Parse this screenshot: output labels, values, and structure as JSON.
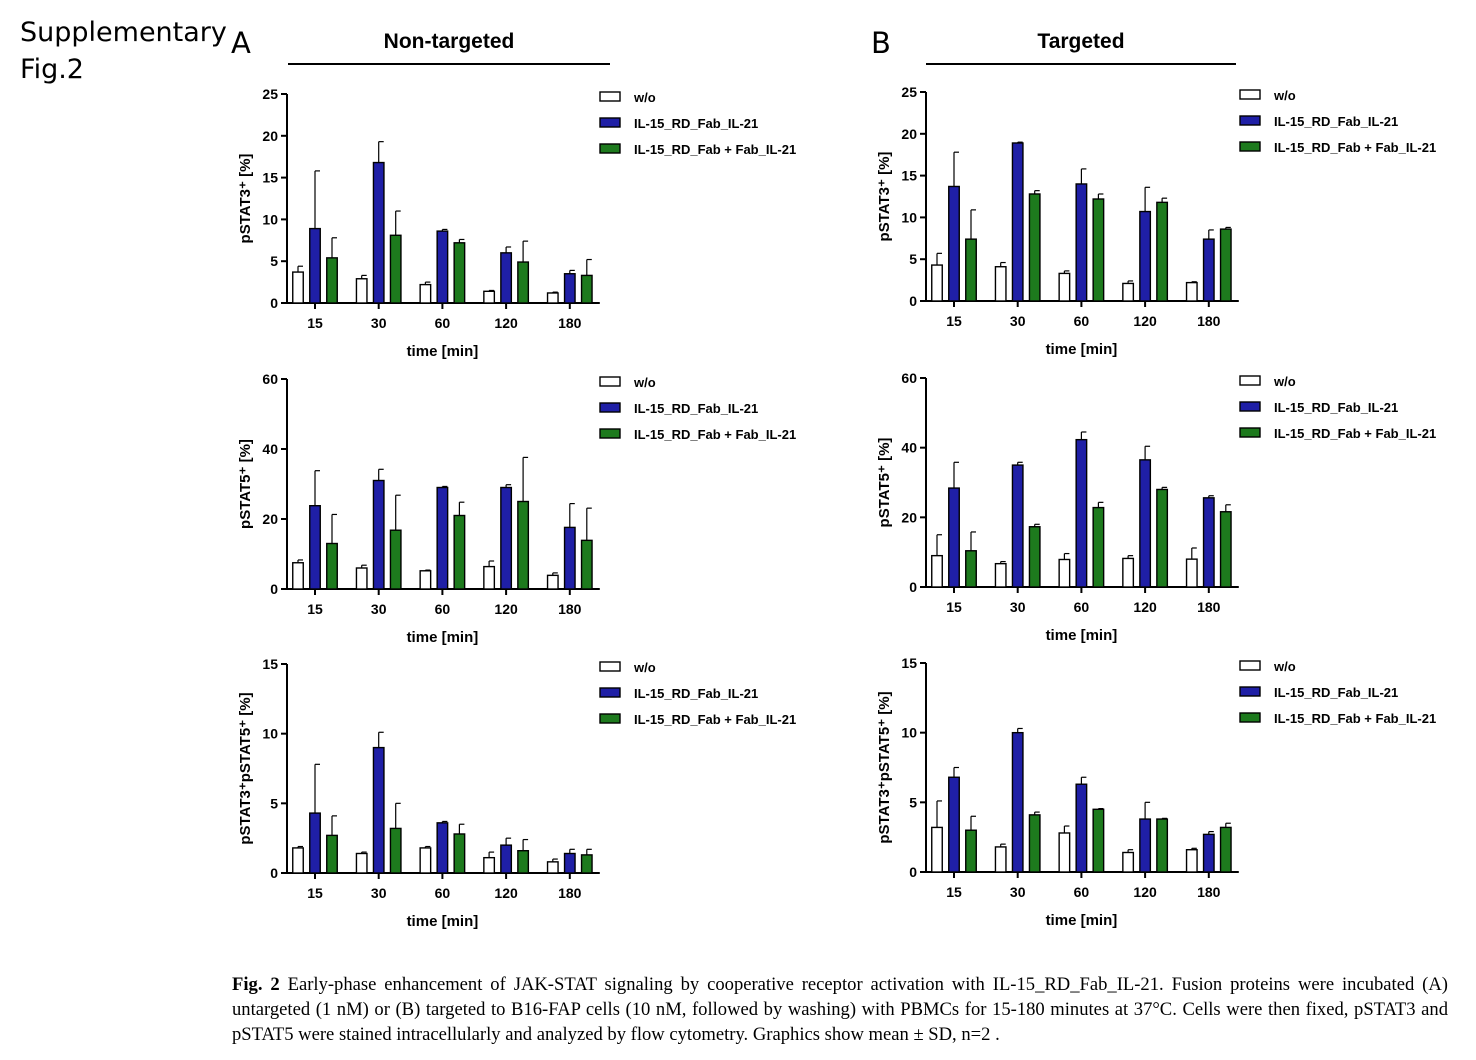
{
  "figure_label": "Supplementary\nFig.2",
  "panels": [
    {
      "letter": "A",
      "title": "Non-targeted"
    },
    {
      "letter": "B",
      "title": "Targeted"
    }
  ],
  "legend": [
    {
      "name": "w/o",
      "color": "#ffffff"
    },
    {
      "name": "IL-15_RD_Fab_IL-21",
      "color": "#1f1fa6"
    },
    {
      "name": "IL-15_RD_Fab + Fab_IL-21",
      "color": "#1d7a1d"
    }
  ],
  "caption": {
    "label": "Fig. 2",
    "text": " Early-phase enhancement of JAK-STAT signaling by cooperative receptor activation with IL-15_RD_Fab_IL-21. Fusion proteins were incubated (A) untargeted (1 nM) or (B) targeted to B16-FAP cells (10 nM, followed by washing) with PBMCs for 15-180 minutes at 37°C. Cells were then fixed, pSTAT3 and pSTAT5 were stained intracellularly and analyzed by flow cytometry. Graphics show mean ± SD, n=2 ."
  },
  "chart_data": [
    {
      "type": "bar",
      "panel": "A",
      "categories": [
        "15",
        "30",
        "60",
        "120",
        "180"
      ],
      "xlabel": "time [min]",
      "ylabel": "pSTAT3⁺ [%]",
      "ylim": [
        0,
        25
      ],
      "yticks": [
        0,
        5,
        10,
        15,
        20,
        25
      ],
      "series": [
        {
          "name": "w/o",
          "values": [
            3.7,
            2.9,
            2.2,
            1.4,
            1.2
          ],
          "sd": [
            0.7,
            0.4,
            0.3,
            0.1,
            0.1
          ]
        },
        {
          "name": "IL-15_RD_Fab_IL-21",
          "values": [
            8.9,
            16.8,
            8.6,
            6.0,
            3.5
          ],
          "sd": [
            6.9,
            2.5,
            0.2,
            0.7,
            0.4
          ]
        },
        {
          "name": "IL-15_RD_Fab + Fab_IL-21",
          "values": [
            5.4,
            8.1,
            7.2,
            4.9,
            3.3
          ],
          "sd": [
            2.4,
            2.9,
            0.4,
            2.5,
            1.9
          ]
        }
      ]
    },
    {
      "type": "bar",
      "panel": "A",
      "categories": [
        "15",
        "30",
        "60",
        "120",
        "180"
      ],
      "xlabel": "time [min]",
      "ylabel": "pSTAT5⁺ [%]",
      "ylim": [
        0,
        60
      ],
      "yticks": [
        0,
        20,
        40,
        60
      ],
      "series": [
        {
          "name": "w/o",
          "values": [
            7.5,
            6.0,
            5.2,
            6.4,
            3.9
          ],
          "sd": [
            0.8,
            0.8,
            0.2,
            1.6,
            0.7
          ]
        },
        {
          "name": "IL-15_RD_Fab_IL-21",
          "values": [
            23.8,
            31.0,
            29.0,
            29.0,
            17.6
          ],
          "sd": [
            10.0,
            3.2,
            0.3,
            0.8,
            6.8
          ]
        },
        {
          "name": "IL-15_RD_Fab + Fab_IL-21",
          "values": [
            13.0,
            16.8,
            21.0,
            25.0,
            13.9
          ],
          "sd": [
            8.3,
            10.0,
            3.8,
            12.6,
            9.2
          ]
        }
      ]
    },
    {
      "type": "bar",
      "panel": "A",
      "categories": [
        "15",
        "30",
        "60",
        "120",
        "180"
      ],
      "xlabel": "time [min]",
      "ylabel": "pSTAT3⁺pSTAT5⁺ [%]",
      "ylim": [
        0,
        15
      ],
      "yticks": [
        0,
        5,
        10,
        15
      ],
      "series": [
        {
          "name": "w/o",
          "values": [
            1.8,
            1.4,
            1.8,
            1.1,
            0.8
          ],
          "sd": [
            0.1,
            0.1,
            0.1,
            0.4,
            0.2
          ]
        },
        {
          "name": "IL-15_RD_Fab_IL-21",
          "values": [
            4.3,
            9.0,
            3.6,
            2.0,
            1.4
          ],
          "sd": [
            3.5,
            1.1,
            0.1,
            0.5,
            0.3
          ]
        },
        {
          "name": "IL-15_RD_Fab + Fab_IL-21",
          "values": [
            2.7,
            3.2,
            2.8,
            1.6,
            1.3
          ],
          "sd": [
            1.4,
            1.8,
            0.7,
            0.8,
            0.4
          ]
        }
      ]
    },
    {
      "type": "bar",
      "panel": "B",
      "categories": [
        "15",
        "30",
        "60",
        "120",
        "180"
      ],
      "xlabel": "time [min]",
      "ylabel": "pSTAT3⁺ [%]",
      "ylim": [
        0,
        25
      ],
      "yticks": [
        0,
        5,
        10,
        15,
        20,
        25
      ],
      "series": [
        {
          "name": "w/o",
          "values": [
            4.3,
            4.1,
            3.3,
            2.1,
            2.2
          ],
          "sd": [
            1.4,
            0.5,
            0.3,
            0.3,
            0.1
          ]
        },
        {
          "name": "IL-15_RD_Fab_IL-21",
          "values": [
            13.7,
            18.9,
            14.0,
            10.7,
            7.4
          ],
          "sd": [
            4.1,
            0.1,
            1.8,
            2.9,
            1.1
          ]
        },
        {
          "name": "IL-15_RD_Fab + Fab_IL-21",
          "values": [
            7.4,
            12.8,
            12.2,
            11.8,
            8.6
          ],
          "sd": [
            3.5,
            0.4,
            0.6,
            0.5,
            0.2
          ]
        }
      ]
    },
    {
      "type": "bar",
      "panel": "B",
      "categories": [
        "15",
        "30",
        "60",
        "120",
        "180"
      ],
      "xlabel": "time [min]",
      "ylabel": "pSTAT5⁺ [%]",
      "ylim": [
        0,
        60
      ],
      "yticks": [
        0,
        20,
        40,
        60
      ],
      "series": [
        {
          "name": "w/o",
          "values": [
            9.0,
            6.7,
            7.9,
            8.2,
            8.0
          ],
          "sd": [
            6.0,
            0.6,
            1.7,
            0.8,
            3.2
          ]
        },
        {
          "name": "IL-15_RD_Fab_IL-21",
          "values": [
            28.4,
            35.0,
            42.3,
            36.5,
            25.6
          ],
          "sd": [
            7.4,
            0.8,
            2.2,
            3.9,
            0.6
          ]
        },
        {
          "name": "IL-15_RD_Fab + Fab_IL-21",
          "values": [
            10.4,
            17.3,
            22.8,
            28.0,
            21.6
          ],
          "sd": [
            5.4,
            0.7,
            1.5,
            0.6,
            2.0
          ]
        }
      ]
    },
    {
      "type": "bar",
      "panel": "B",
      "categories": [
        "15",
        "30",
        "60",
        "120",
        "180"
      ],
      "xlabel": "time [min]",
      "ylabel": "pSTAT3⁺pSTAT5⁺ [%]",
      "ylim": [
        0,
        15
      ],
      "yticks": [
        0,
        5,
        10,
        15
      ],
      "series": [
        {
          "name": "w/o",
          "values": [
            3.2,
            1.8,
            2.8,
            1.4,
            1.6
          ],
          "sd": [
            1.9,
            0.2,
            0.5,
            0.2,
            0.1
          ]
        },
        {
          "name": "IL-15_RD_Fab_IL-21",
          "values": [
            6.8,
            10.0,
            6.3,
            3.8,
            2.7
          ],
          "sd": [
            0.7,
            0.3,
            0.5,
            1.2,
            0.2
          ]
        },
        {
          "name": "IL-15_RD_Fab + Fab_IL-21",
          "values": [
            3.0,
            4.1,
            4.5,
            3.8,
            3.2
          ],
          "sd": [
            1.0,
            0.2,
            0.05,
            0.05,
            0.3
          ]
        }
      ]
    }
  ]
}
